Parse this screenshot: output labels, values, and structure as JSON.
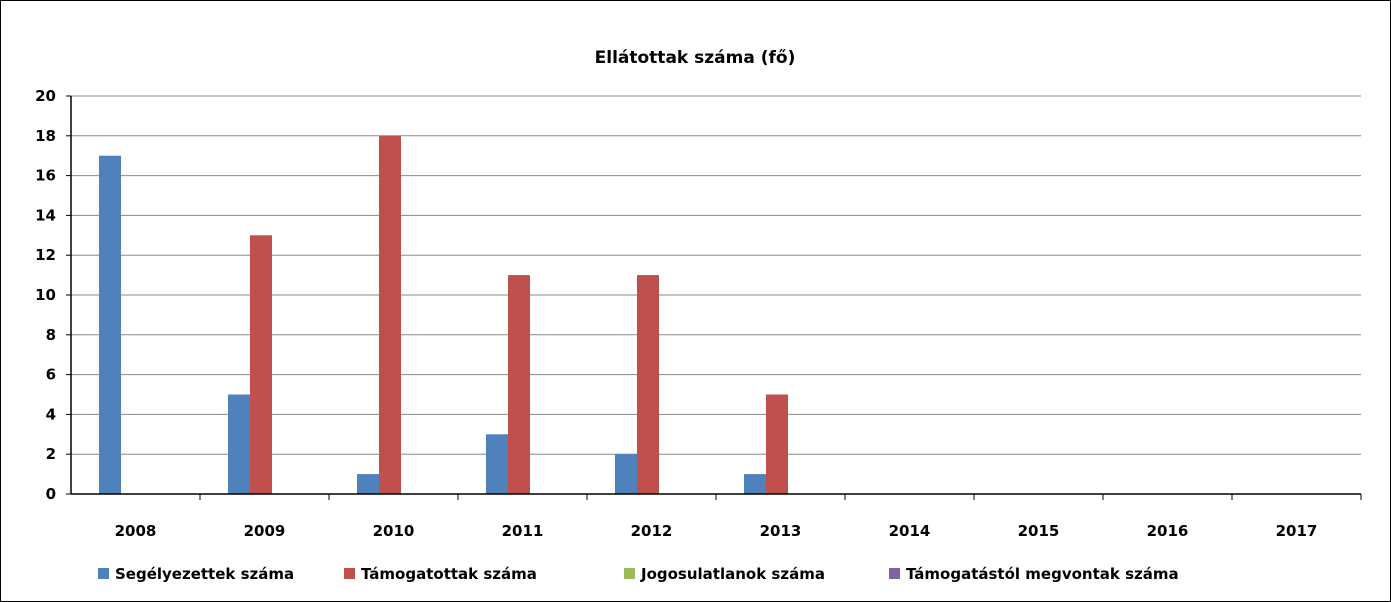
{
  "chart_data": {
    "type": "bar",
    "title": "Ellátottak száma (fő)",
    "xlabel": "",
    "ylabel": "",
    "categories": [
      "2008",
      "2009",
      "2010",
      "2011",
      "2012",
      "2013",
      "2014",
      "2015",
      "2016",
      "2017"
    ],
    "series": [
      {
        "name": "Segélyezettek száma",
        "color": "#4f81bd",
        "values": [
          17,
          5,
          1,
          3,
          2,
          1,
          0,
          0,
          0,
          0
        ]
      },
      {
        "name": "Támogatottak száma",
        "color": "#c0504d",
        "values": [
          0,
          13,
          18,
          11,
          11,
          5,
          0,
          0,
          0,
          0
        ]
      },
      {
        "name": "Jogosulatlanok száma",
        "color": "#9bbb59",
        "values": [
          0,
          0,
          0,
          0,
          0,
          0,
          0,
          0,
          0,
          0
        ]
      },
      {
        "name": "Támogatástól megvontak száma",
        "color": "#8064a2",
        "values": [
          0,
          0,
          0,
          0,
          0,
          0,
          0,
          0,
          0,
          0
        ]
      }
    ],
    "ylim": [
      0,
      20
    ],
    "yticks": [
      0,
      2,
      4,
      6,
      8,
      10,
      12,
      14,
      16,
      18,
      20
    ],
    "grid": true,
    "legend": "bottom"
  }
}
